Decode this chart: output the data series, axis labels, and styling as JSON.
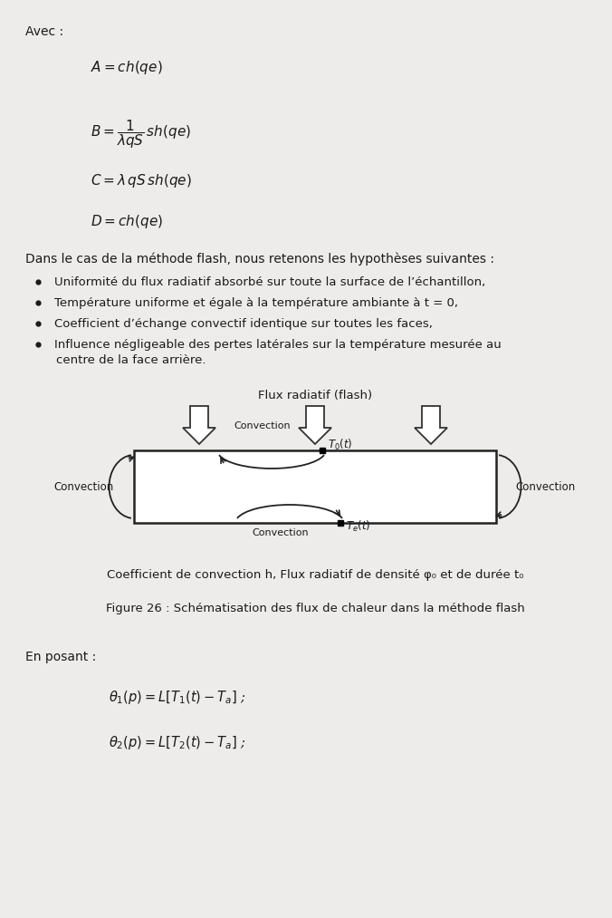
{
  "bg_color": "#edecea",
  "text_color": "#1a1a1a",
  "avec_label": "Avec :",
  "eq_A": "$A  =  ch(qe)$",
  "eq_B": "$B = \\dfrac{1}{\\lambda qS}\\,sh(qe)$",
  "eq_C": "$C  =  \\lambda\\,qS\\,sh(qe)$",
  "eq_D": "$D  =  ch(qe)$",
  "dans_text": "Dans le cas de la méthode flash, nous retenons les hypothèses suivantes :",
  "bullet1": "Uniformité du flux radiatif absorbé sur toute la surface de l’échantillon,",
  "bullet2": "Température uniforme et égale à la température ambiante à t = 0,",
  "bullet3": "Coefficient d’échange convectif identique sur toutes les faces,",
  "bullet4a": "Influence négligeable des pertes latérales sur la température mesurée au",
  "bullet4b": "centre de la face arrière.",
  "flux_label": "Flux radiatif (flash)",
  "conv_label": "Convection",
  "T0_label": "$T_0(t)$",
  "Te_label": "$T_e(t)$",
  "caption1": "Coefficient de convection h, Flux radiatif de densité φ₀ et de durée t₀",
  "fig_caption": "Figure 26 : Schématisation des flux de chaleur dans la méthode flash",
  "en_posant": "En posant :",
  "eq_theta1": "$\\theta_1(p) = L\\left[T_1(t) - T_a\\right]$ ;",
  "eq_theta2": "$\\theta_2(p) = L\\left[T_2(t) - T_a\\right]$ ;"
}
